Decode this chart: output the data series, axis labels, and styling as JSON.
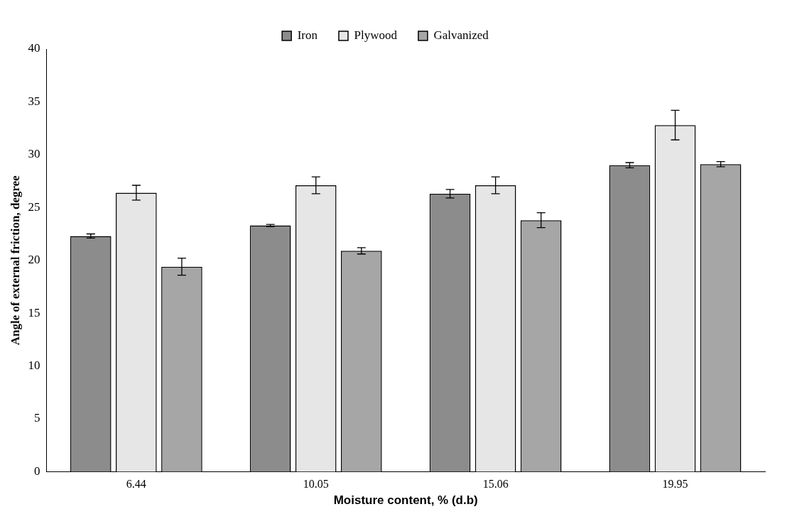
{
  "chart_data": {
    "type": "bar",
    "xlabel": "Moisture content, % (d.b)",
    "ylabel": "Angle of external friction, degree",
    "categories": [
      "6.44",
      "10.05",
      "15.06",
      "19.95"
    ],
    "series": [
      {
        "name": "Iron",
        "color": "#8c8c8c",
        "values": [
          22.3,
          23.3,
          26.3,
          29.0
        ],
        "errors": [
          0.2,
          0.1,
          0.4,
          0.25
        ]
      },
      {
        "name": "Plywood",
        "color": "#e6e6e6",
        "values": [
          26.4,
          27.1,
          27.1,
          32.8
        ],
        "errors": [
          0.7,
          0.8,
          0.8,
          1.4
        ]
      },
      {
        "name": "Galvanized",
        "color": "#a6a6a6",
        "values": [
          19.4,
          20.9,
          23.8,
          29.1
        ],
        "errors": [
          0.8,
          0.3,
          0.7,
          0.25
        ]
      }
    ],
    "ylim": [
      0,
      40
    ],
    "yticks": [
      0,
      5,
      10,
      15,
      20,
      25,
      30,
      35,
      40
    ],
    "grid": false,
    "legend": "top"
  }
}
